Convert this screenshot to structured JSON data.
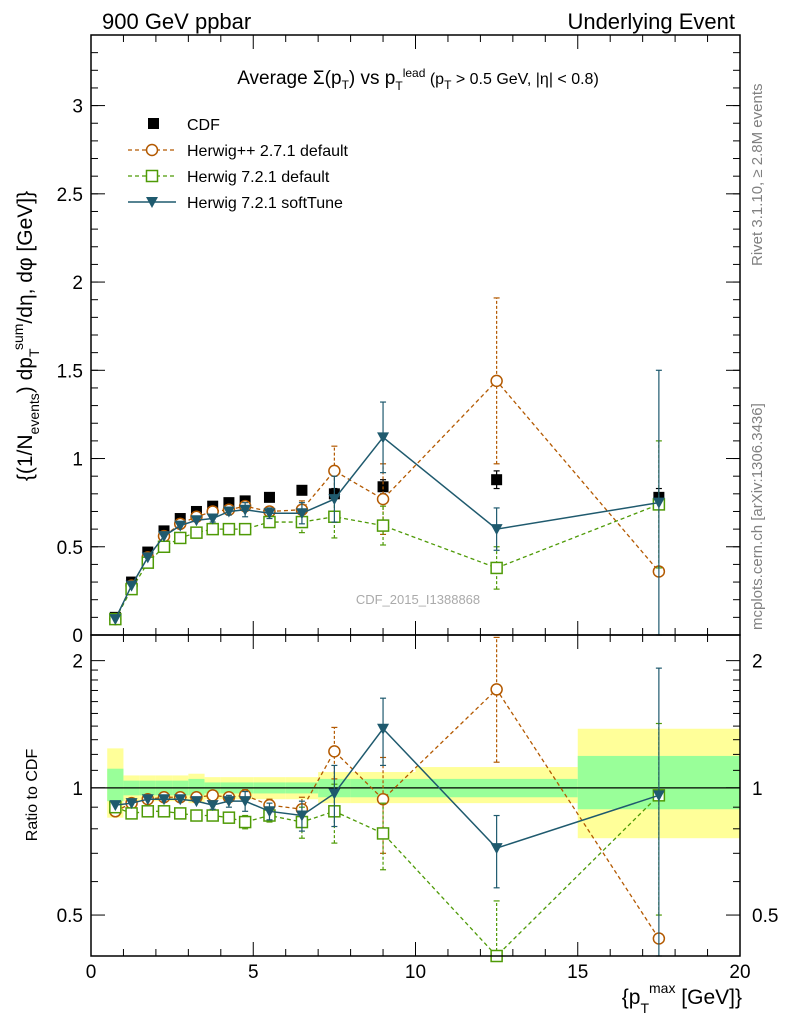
{
  "header": {
    "left": "900 GeV ppbar",
    "right": "Underlying Event"
  },
  "side_labels": {
    "rivet": "Rivet 3.1.10, ≥ 2.8M events",
    "mcplots": "mcplots.cern.ch [arXiv:1306.3436]"
  },
  "watermark": "CDF_2015_I1388868",
  "chart_data": [
    {
      "type": "scatter",
      "title": "Average Σ(pT) vs pT lead (pT > 0.5 GeV, |η| < 0.8)",
      "ylabel": "{(1/Nevents) dpTsum/dη, dφ [GeV]}",
      "xlim": [
        0,
        20
      ],
      "ylim": [
        0,
        3.4
      ],
      "yticks": [
        0,
        0.5,
        1,
        1.5,
        2,
        2.5,
        3
      ],
      "ytick_labels": [
        "0",
        "0.5",
        "1",
        "1.5",
        "2",
        "2.5",
        "3"
      ],
      "legend_position": "top-left",
      "x": [
        0.75,
        1.25,
        1.75,
        2.25,
        2.75,
        3.25,
        3.75,
        4.25,
        4.75,
        5.5,
        6.5,
        7.5,
        9.0,
        12.5,
        17.5
      ],
      "series": [
        {
          "name": "CDF",
          "color": "#000000",
          "marker": "square-filled",
          "line": "none",
          "values": [
            0.1,
            0.3,
            0.47,
            0.59,
            0.66,
            0.7,
            0.73,
            0.75,
            0.76,
            0.78,
            0.82,
            0.8,
            0.84,
            0.88,
            0.78
          ],
          "err": [
            0.01,
            0.01,
            0.01,
            0.01,
            0.01,
            0.01,
            0.01,
            0.01,
            0.01,
            0.02,
            0.02,
            0.03,
            0.04,
            0.05,
            0.05
          ]
        },
        {
          "name": "Herwig++ 2.7.1 default",
          "color": "#b35900",
          "marker": "circle-open",
          "line": "dashed",
          "values": [
            0.09,
            0.28,
            0.44,
            0.56,
            0.63,
            0.67,
            0.7,
            0.71,
            0.73,
            0.7,
            0.71,
            0.93,
            0.77,
            1.44,
            0.36
          ],
          "err": [
            0.0,
            0.0,
            0.0,
            0.0,
            0.0,
            0.0,
            0.0,
            0.01,
            0.02,
            0.02,
            0.05,
            0.14,
            0.2,
            0.47,
            0.0
          ]
        },
        {
          "name": "Herwig 7.2.1 default",
          "color": "#4e9a06",
          "marker": "square-open",
          "line": "dashed",
          "values": [
            0.09,
            0.26,
            0.41,
            0.5,
            0.55,
            0.58,
            0.6,
            0.6,
            0.6,
            0.64,
            0.64,
            0.67,
            0.62,
            0.38,
            0.74
          ],
          "err": [
            0.0,
            0.0,
            0.0,
            0.0,
            0.0,
            0.0,
            0.0,
            0.0,
            0.02,
            0.02,
            0.06,
            0.12,
            0.11,
            0.12,
            0.36
          ]
        },
        {
          "name": "Herwig 7.2.1 softTune",
          "color": "#1f5a6e",
          "marker": "triangle-down",
          "line": "solid",
          "values": [
            0.09,
            0.28,
            0.44,
            0.56,
            0.62,
            0.65,
            0.66,
            0.7,
            0.71,
            0.69,
            0.69,
            0.77,
            1.12,
            0.6,
            0.75
          ],
          "err": [
            0.0,
            0.0,
            0.0,
            0.0,
            0.0,
            0.0,
            0.02,
            0.02,
            0.04,
            0.03,
            0.06,
            0.13,
            0.2,
            0.12,
            0.75
          ]
        }
      ]
    },
    {
      "type": "scatter",
      "ylabel": "Ratio to CDF",
      "xlabel": "{pTmax [GeV]}",
      "xlim": [
        0,
        20
      ],
      "ylim": [
        0.4,
        2.3
      ],
      "yscale": "log",
      "xticks": [
        0,
        5,
        10,
        15,
        20
      ],
      "xtick_labels": [
        "0",
        "5",
        "10",
        "15",
        "20"
      ],
      "yticks": [
        0.5,
        1,
        2
      ],
      "ytick_labels": [
        "0.5",
        "1",
        "2"
      ],
      "reference_line": 1,
      "x": [
        0.75,
        1.25,
        1.75,
        2.25,
        2.75,
        3.25,
        3.75,
        4.25,
        4.75,
        5.5,
        6.5,
        7.5,
        9.0,
        12.5,
        17.5
      ],
      "bands": {
        "bin_edges": [
          0.5,
          1.0,
          1.5,
          2.0,
          2.5,
          3.0,
          3.5,
          4.0,
          4.5,
          5.0,
          6.0,
          7.0,
          8.0,
          10.0,
          15.0,
          20.0
        ],
        "stat": [
          [
            0.93,
            1.11
          ],
          [
            0.96,
            1.04
          ],
          [
            0.96,
            1.04
          ],
          [
            0.96,
            1.04
          ],
          [
            0.96,
            1.04
          ],
          [
            0.96,
            1.05
          ],
          [
            0.97,
            1.03
          ],
          [
            0.97,
            1.03
          ],
          [
            0.97,
            1.03
          ],
          [
            0.97,
            1.03
          ],
          [
            0.97,
            1.03
          ],
          [
            0.95,
            1.05
          ],
          [
            0.95,
            1.05
          ],
          [
            0.95,
            1.05
          ],
          [
            0.89,
            1.19
          ]
        ],
        "total": [
          [
            0.85,
            1.24
          ],
          [
            0.93,
            1.07
          ],
          [
            0.93,
            1.07
          ],
          [
            0.93,
            1.07
          ],
          [
            0.93,
            1.07
          ],
          [
            0.92,
            1.08
          ],
          [
            0.94,
            1.06
          ],
          [
            0.94,
            1.06
          ],
          [
            0.94,
            1.06
          ],
          [
            0.94,
            1.06
          ],
          [
            0.94,
            1.06
          ],
          [
            0.92,
            1.09
          ],
          [
            0.92,
            1.09
          ],
          [
            0.92,
            1.12
          ],
          [
            0.76,
            1.38
          ]
        ]
      },
      "band_colors": {
        "stat": "#99ff99",
        "total": "#ffff99"
      },
      "series": [
        {
          "name": "Herwig++ 2.7.1 default",
          "color": "#b35900",
          "marker": "circle-open",
          "line": "dashed",
          "values": [
            0.88,
            0.92,
            0.94,
            0.95,
            0.95,
            0.95,
            0.96,
            0.95,
            0.96,
            0.91,
            0.89,
            1.22,
            0.94,
            1.71,
            0.44
          ],
          "err": [
            0.0,
            0.0,
            0.0,
            0.0,
            0.0,
            0.0,
            0.0,
            0.01,
            0.03,
            0.03,
            0.06,
            0.17,
            0.24,
            0.56,
            0.0
          ]
        },
        {
          "name": "Herwig 7.2.1 default",
          "color": "#4e9a06",
          "marker": "square-open",
          "line": "dashed",
          "values": [
            0.9,
            0.87,
            0.88,
            0.88,
            0.87,
            0.86,
            0.86,
            0.85,
            0.83,
            0.86,
            0.83,
            0.88,
            0.78,
            0.4,
            0.96
          ],
          "err": [
            0.0,
            0.0,
            0.0,
            0.0,
            0.0,
            0.0,
            0.0,
            0.0,
            0.03,
            0.03,
            0.07,
            0.14,
            0.14,
            0.14,
            0.46
          ]
        },
        {
          "name": "Herwig 7.2.1 softTune",
          "color": "#1f5a6e",
          "marker": "triangle-down",
          "line": "solid",
          "values": [
            0.91,
            0.92,
            0.94,
            0.94,
            0.94,
            0.93,
            0.91,
            0.93,
            0.93,
            0.88,
            0.86,
            0.97,
            1.38,
            0.72,
            0.96
          ],
          "err": [
            0.0,
            0.0,
            0.0,
            0.0,
            0.0,
            0.0,
            0.02,
            0.03,
            0.05,
            0.04,
            0.07,
            0.16,
            0.25,
            0.14,
            0.96
          ]
        }
      ]
    }
  ]
}
